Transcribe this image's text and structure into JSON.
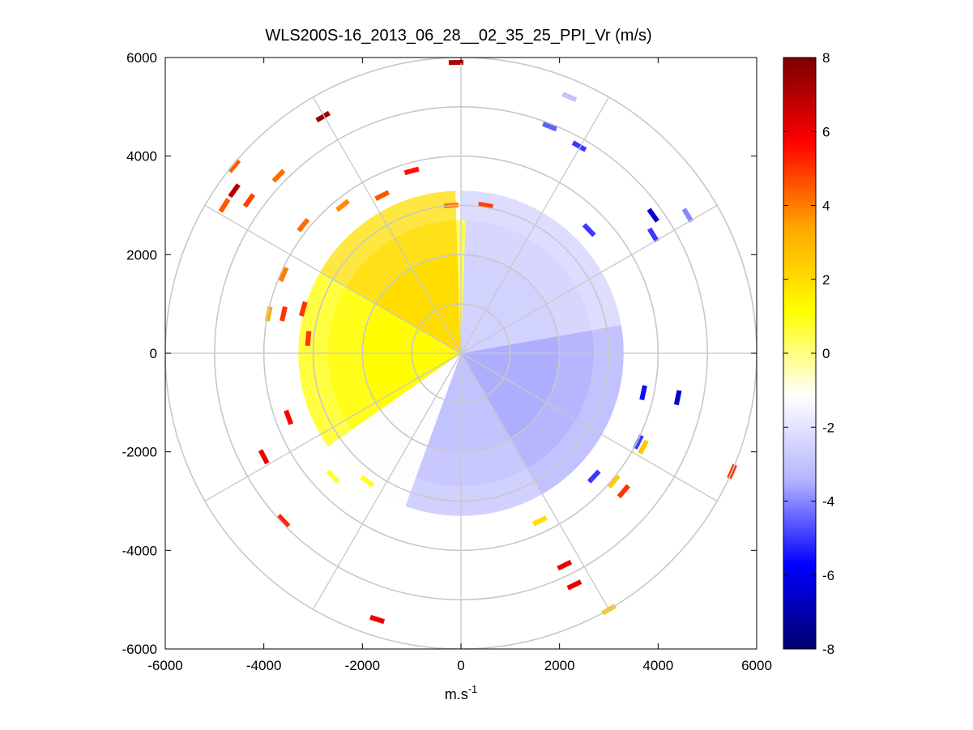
{
  "chart_data": {
    "type": "heatmap",
    "subtype": "polar PPI scan",
    "title": "WLS200S-16_2013_06_28__02_35_25_PPI_Vr (m/s)",
    "xlabel": "m.s",
    "xlabel_exponent": "-1",
    "ylabel": "",
    "xlim": [
      -6000,
      6000
    ],
    "ylim": [
      -6000,
      6000
    ],
    "xticks": [
      -6000,
      -4000,
      -2000,
      0,
      2000,
      4000,
      6000
    ],
    "yticks": [
      6000,
      4000,
      2000,
      0,
      -2000,
      -4000,
      -6000
    ],
    "range_rings": [
      1000,
      2000,
      3000,
      4000,
      5000,
      6000
    ],
    "spokes_deg": [
      0,
      30,
      60,
      90,
      120,
      150,
      180,
      210,
      240,
      270,
      300,
      330
    ],
    "colorbar": {
      "min": -8,
      "max": 8,
      "ticks": [
        8,
        6,
        4,
        2,
        0,
        -2,
        -4,
        -6,
        -8
      ],
      "colors": [
        "#00006e",
        "#0000ff",
        "#b4b4ff",
        "#ffffff",
        "#ffff00",
        "#ffa500",
        "#ff0000",
        "#7a0000"
      ]
    },
    "main_echo": {
      "description": "dense radial velocity field within approx 3000 m",
      "rings": [
        {
          "r_inner": 0,
          "r_outer": 2000
        },
        {
          "r_inner": 2000,
          "r_outer": 2700
        },
        {
          "r_inner": 2700,
          "r_outer": 3300
        }
      ],
      "sectors": [
        {
          "az_start": 0,
          "az_end": 80,
          "vr": -2.5
        },
        {
          "az_start": 80,
          "az_end": 150,
          "vr": -3.5
        },
        {
          "az_start": 150,
          "az_end": 200,
          "vr": -3.0
        },
        {
          "az_start": 200,
          "az_end": 235,
          "vr": -1.2
        },
        {
          "az_start": 235,
          "az_end": 300,
          "vr": 1.2
        },
        {
          "az_start": 300,
          "az_end": 358,
          "vr": 2.0
        }
      ],
      "north_sector": {
        "az_start": 358,
        "az_end": 2,
        "vr": 0.3
      }
    },
    "scattered_gates": [
      {
        "x": -2800,
        "y": 4800,
        "vr": 7.5
      },
      {
        "x": -4600,
        "y": 3300,
        "vr": 7.0
      },
      {
        "x": -4600,
        "y": 3800,
        "vr": 4.5
      },
      {
        "x": -3700,
        "y": 3600,
        "vr": 4.2
      },
      {
        "x": -4300,
        "y": 3100,
        "vr": 4.8
      },
      {
        "x": -4800,
        "y": 3000,
        "vr": 4.5
      },
      {
        "x": -1000,
        "y": 3700,
        "vr": 5.5
      },
      {
        "x": -1600,
        "y": 3200,
        "vr": 4.5
      },
      {
        "x": -3200,
        "y": 2600,
        "vr": 4.2
      },
      {
        "x": -2400,
        "y": 3000,
        "vr": 3.8
      },
      {
        "x": -3600,
        "y": 1600,
        "vr": 4.0
      },
      {
        "x": -3900,
        "y": 800,
        "vr": 3.2
      },
      {
        "x": -3600,
        "y": 800,
        "vr": 5.0
      },
      {
        "x": -3200,
        "y": 900,
        "vr": 5.0
      },
      {
        "x": -3100,
        "y": 300,
        "vr": 5.0
      },
      {
        "x": -3500,
        "y": -1300,
        "vr": 5.8
      },
      {
        "x": -4000,
        "y": -2100,
        "vr": 6.0
      },
      {
        "x": -3600,
        "y": -3400,
        "vr": 5.2
      },
      {
        "x": -2600,
        "y": -2500,
        "vr": 0.8
      },
      {
        "x": -1900,
        "y": -2600,
        "vr": 0.8
      },
      {
        "x": -1700,
        "y": -5400,
        "vr": 6.0
      },
      {
        "x": -200,
        "y": 3000,
        "vr": 4.0
      },
      {
        "x": 500,
        "y": 3000,
        "vr": 4.8
      },
      {
        "x": 2200,
        "y": 5200,
        "vr": -3.0
      },
      {
        "x": 1800,
        "y": 4600,
        "vr": -4.5
      },
      {
        "x": 2400,
        "y": 4200,
        "vr": -5.0
      },
      {
        "x": 2600,
        "y": 2500,
        "vr": -5.0
      },
      {
        "x": 3900,
        "y": 2800,
        "vr": -6.5
      },
      {
        "x": 4600,
        "y": 2800,
        "vr": -4.0
      },
      {
        "x": 3900,
        "y": 2400,
        "vr": -5.0
      },
      {
        "x": 3700,
        "y": -800,
        "vr": -5.5
      },
      {
        "x": 4400,
        "y": -900,
        "vr": -6.5
      },
      {
        "x": 3700,
        "y": -1900,
        "vr": 2.5
      },
      {
        "x": 3600,
        "y": -1800,
        "vr": -5.0
      },
      {
        "x": 2700,
        "y": -2500,
        "vr": -5.0
      },
      {
        "x": 3100,
        "y": -2600,
        "vr": 2.5
      },
      {
        "x": 3300,
        "y": -2800,
        "vr": 5.0
      },
      {
        "x": 5500,
        "y": -2400,
        "vr": 5.0
      },
      {
        "x": 1600,
        "y": -3400,
        "vr": 2.0
      },
      {
        "x": 2100,
        "y": -4300,
        "vr": 6.0
      },
      {
        "x": 2300,
        "y": -4700,
        "vr": 6.0
      },
      {
        "x": 3000,
        "y": -5200,
        "vr": 2.5
      },
      {
        "x": -100,
        "y": 5900,
        "vr": 7.0
      }
    ]
  }
}
